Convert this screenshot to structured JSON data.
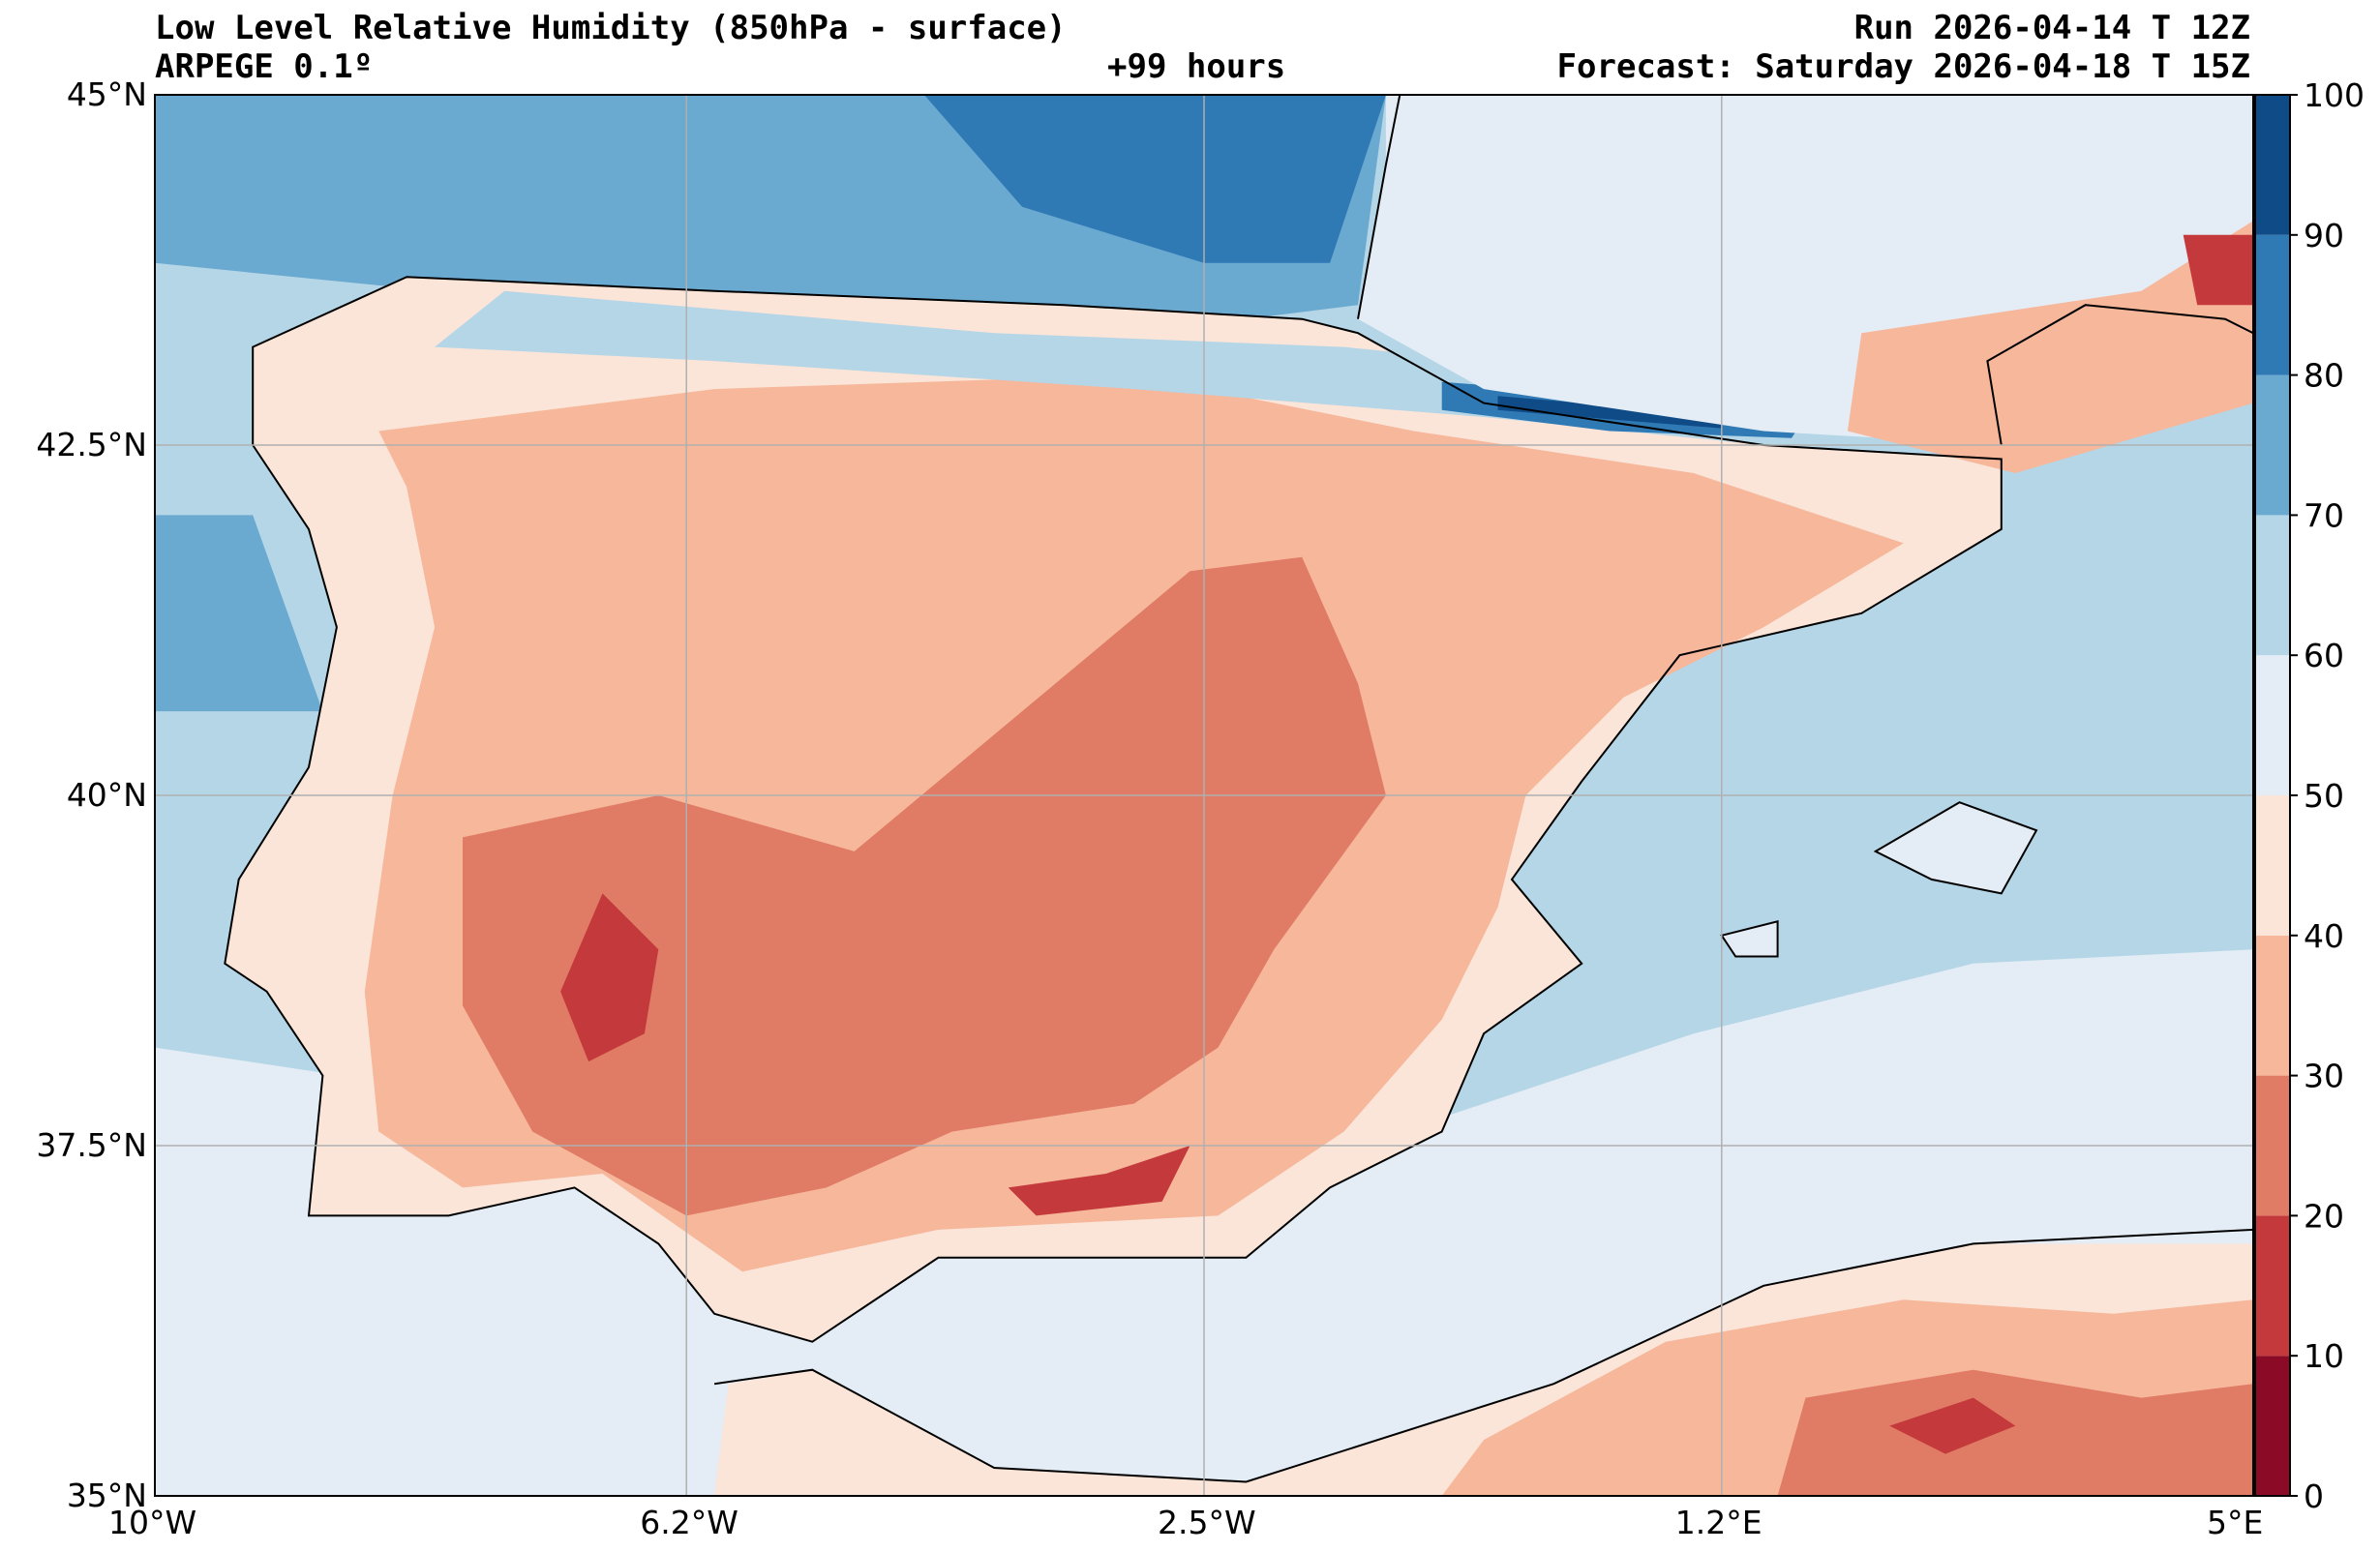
{
  "header": {
    "title": "Low Level Relative Humidity (850hPa - surface)",
    "model": "ARPEGE 0.1º",
    "lead": "+99 hours",
    "run": "Run 2026-04-14 T 12Z",
    "forecast": "Forecast: Saturday 2026-04-18 T 15Z"
  },
  "map": {
    "lon_range": [
      -10,
      5
    ],
    "lat_range": [
      35,
      45
    ],
    "lat_ticks": [
      {
        "value": 45,
        "label": "45°N"
      },
      {
        "value": 42.5,
        "label": "42.5°N"
      },
      {
        "value": 40,
        "label": "40°N"
      },
      {
        "value": 37.5,
        "label": "37.5°N"
      },
      {
        "value": 35,
        "label": "35°N"
      }
    ],
    "lon_ticks": [
      {
        "value": -10,
        "label": "10°W"
      },
      {
        "value": -6.2,
        "label": "6.2°W"
      },
      {
        "value": -2.5,
        "label": "2.5°W"
      },
      {
        "value": 1.2,
        "label": "1.2°E"
      },
      {
        "value": 5,
        "label": "5°E"
      }
    ]
  },
  "colorbar": {
    "levels": [
      0,
      10,
      20,
      30,
      40,
      50,
      60,
      70,
      80,
      90,
      100
    ],
    "colors": [
      "#8b0a26",
      "#c43a3c",
      "#e07b65",
      "#f6b79b",
      "#fbe4d8",
      "#e4edf5",
      "#b5d6e7",
      "#6aa9d0",
      "#2f79b5",
      "#0f4b87"
    ],
    "labels": [
      "0",
      "10",
      "20",
      "30",
      "40",
      "50",
      "60",
      "70",
      "80",
      "90",
      "100"
    ]
  },
  "colors": {
    "sea": "#b5d6e7",
    "sea_south": "#e4edf5",
    "land_dry": "#f6b79b",
    "border": "#000000",
    "grid": "#b0b0b0"
  }
}
